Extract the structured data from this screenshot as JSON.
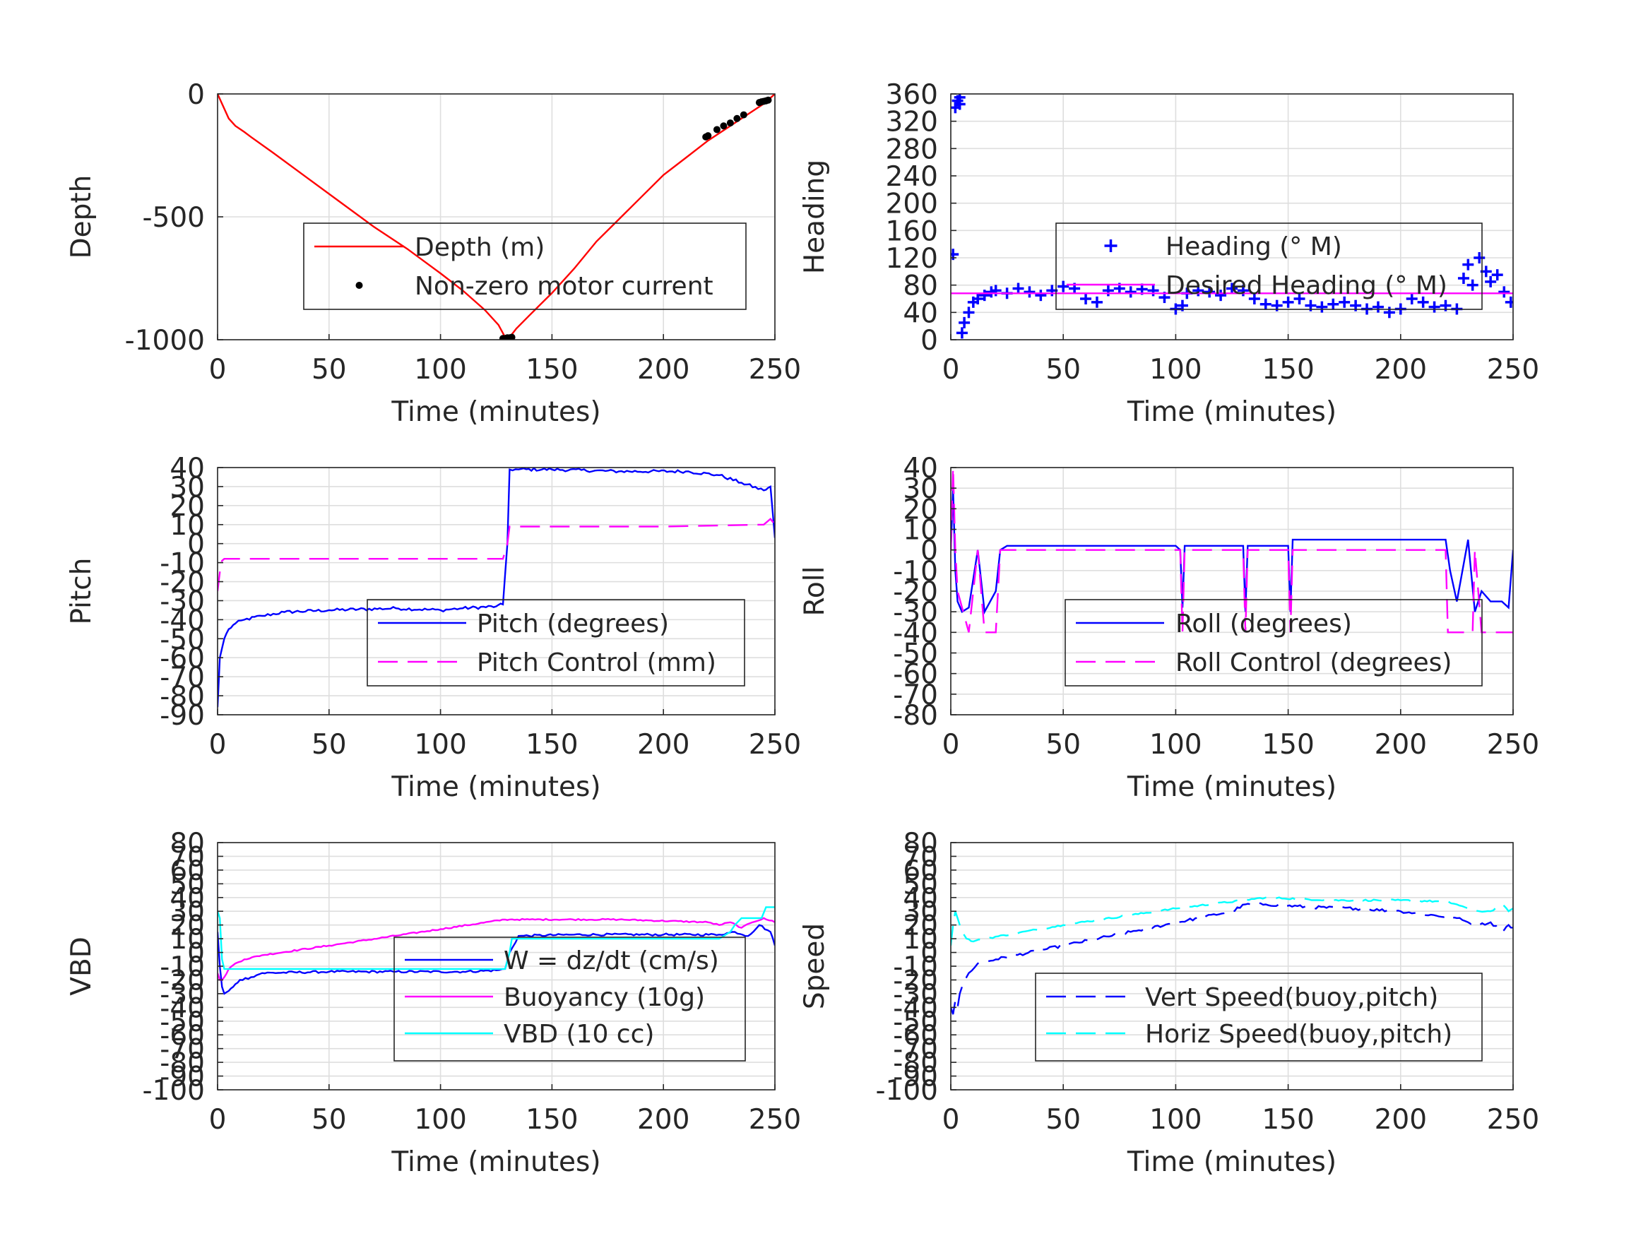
{
  "figure": {
    "background": "#ffffff"
  },
  "chart_data": [
    {
      "id": "depth",
      "type": "line",
      "title": "",
      "xlabel": "Time (minutes)",
      "ylabel": "Depth",
      "xlim": [
        0,
        250
      ],
      "ylim": [
        -1000,
        0
      ],
      "xticks": [
        0,
        50,
        100,
        150,
        200,
        250
      ],
      "yticks": [
        -1000,
        -500,
        0
      ],
      "yticklabels": [
        "-1000",
        "-500",
        "0"
      ],
      "grid": true,
      "legend": {
        "placement": "center-right"
      },
      "series": [
        {
          "name": "Depth (m)",
          "style": "line",
          "color": "#ff0000",
          "dash": "solid",
          "x": [
            0,
            2,
            5,
            8,
            12,
            15,
            25,
            40,
            55,
            70,
            85,
            100,
            110,
            120,
            126,
            129,
            131,
            134,
            140,
            150,
            160,
            170,
            180,
            190,
            200,
            210,
            220,
            230,
            240,
            245,
            250
          ],
          "y": [
            0,
            -40,
            -100,
            -130,
            -155,
            -175,
            -240,
            -340,
            -440,
            -540,
            -630,
            -730,
            -800,
            -880,
            -940,
            -990,
            -990,
            -955,
            -900,
            -810,
            -710,
            -600,
            -510,
            -420,
            -330,
            -260,
            -190,
            -130,
            -70,
            -40,
            0
          ]
        },
        {
          "name": "Non-zero motor current",
          "style": "marker",
          "marker": "dot",
          "color": "#000000",
          "x": [
            128,
            129,
            130,
            131,
            132,
            219,
            220,
            224,
            227,
            230,
            233,
            236,
            243,
            244,
            245,
            246,
            247
          ],
          "y": [
            -995,
            -995,
            -992,
            -992,
            -990,
            -175,
            -170,
            -145,
            -130,
            -118,
            -100,
            -85,
            -35,
            -32,
            -30,
            -28,
            -25
          ]
        }
      ]
    },
    {
      "id": "heading",
      "type": "scatter",
      "title": "",
      "xlabel": "Time (minutes)",
      "ylabel": "Heading",
      "xlim": [
        0,
        250
      ],
      "ylim": [
        0,
        360
      ],
      "xticks": [
        0,
        50,
        100,
        150,
        200,
        250
      ],
      "yticks": [
        0,
        40,
        80,
        120,
        160,
        200,
        240,
        280,
        320,
        360
      ],
      "yticklabels": [
        "0",
        "40",
        "80",
        "120",
        "160",
        "200",
        "240",
        "280",
        "320",
        "360"
      ],
      "grid": true,
      "legend": {
        "placement": "center"
      },
      "series": [
        {
          "name": "Heading (° M)",
          "style": "marker",
          "marker": "plus",
          "color": "#0000ff",
          "x": [
            1,
            2,
            3,
            4,
            4,
            5,
            6,
            8,
            10,
            12,
            15,
            18,
            20,
            25,
            30,
            35,
            40,
            45,
            50,
            55,
            60,
            65,
            70,
            75,
            80,
            85,
            90,
            95,
            100,
            103,
            105,
            110,
            115,
            120,
            125,
            130,
            135,
            140,
            145,
            150,
            155,
            160,
            165,
            170,
            175,
            180,
            185,
            190,
            195,
            200,
            205,
            210,
            215,
            220,
            225,
            228,
            230,
            232,
            235,
            238,
            240,
            243,
            246,
            249
          ],
          "y": [
            125,
            340,
            350,
            345,
            355,
            10,
            25,
            40,
            55,
            60,
            65,
            70,
            72,
            68,
            75,
            70,
            65,
            72,
            78,
            75,
            60,
            55,
            72,
            75,
            70,
            74,
            72,
            62,
            45,
            50,
            68,
            72,
            70,
            65,
            75,
            72,
            60,
            52,
            50,
            55,
            60,
            50,
            48,
            52,
            55,
            50,
            45,
            48,
            40,
            45,
            60,
            55,
            48,
            50,
            45,
            90,
            110,
            80,
            120,
            100,
            85,
            95,
            70,
            55
          ]
        },
        {
          "name": "Desired Heading (° M)",
          "style": "line",
          "color": "#ff00ff",
          "dash": "solid",
          "x": [
            0,
            250
          ],
          "y": [
            68,
            68
          ]
        }
      ]
    },
    {
      "id": "pitch",
      "type": "line",
      "title": "",
      "xlabel": "Time (minutes)",
      "ylabel": "Pitch",
      "xlim": [
        0,
        250
      ],
      "ylim": [
        -90,
        40
      ],
      "xticks": [
        0,
        50,
        100,
        150,
        200,
        250
      ],
      "yticks": [
        -90,
        -80,
        -70,
        -60,
        -50,
        -40,
        -30,
        -20,
        -10,
        0,
        10,
        20,
        30,
        40
      ],
      "yticklabels": [
        "-90",
        "-80",
        "-70",
        "-60",
        "-50",
        "-40",
        "-30",
        "-20",
        "-10",
        "0",
        "10",
        "20",
        "30",
        "40"
      ],
      "grid": true,
      "legend": {
        "placement": "center-right"
      },
      "series": [
        {
          "name": "Pitch (degrees)",
          "style": "line",
          "color": "#0000ff",
          "dash": "solid",
          "x": [
            0,
            1,
            2,
            3,
            5,
            8,
            12,
            20,
            30,
            50,
            80,
            100,
            110,
            125,
            128,
            130,
            131,
            135,
            150,
            180,
            210,
            225,
            235,
            245,
            248,
            250
          ],
          "y": [
            -86,
            -60,
            -55,
            -50,
            -45,
            -42,
            -40,
            -38,
            -36,
            -35,
            -34,
            -35,
            -34,
            -33,
            -32,
            0,
            39,
            39,
            39,
            38,
            38,
            36,
            32,
            28,
            30,
            3
          ],
          "noise": 0.8
        },
        {
          "name": "Pitch Control (mm)",
          "style": "line",
          "color": "#ff00ff",
          "dash": "dashed",
          "x": [
            0,
            1,
            2,
            3,
            10,
            60,
            120,
            128,
            130,
            131,
            140,
            200,
            245,
            248,
            250
          ],
          "y": [
            -25,
            -15,
            -9,
            -8,
            -8,
            -8,
            -8,
            -8,
            0,
            9,
            9,
            9,
            10,
            13,
            10
          ]
        }
      ]
    },
    {
      "id": "roll",
      "type": "line",
      "title": "",
      "xlabel": "Time (minutes)",
      "ylabel": "Roll",
      "xlim": [
        0,
        250
      ],
      "ylim": [
        -80,
        40
      ],
      "xticks": [
        0,
        50,
        100,
        150,
        200,
        250
      ],
      "yticks": [
        -80,
        -70,
        -60,
        -50,
        -40,
        -30,
        -20,
        -10,
        0,
        10,
        20,
        30,
        40
      ],
      "yticklabels": [
        "-80",
        "-70",
        "-60",
        "-50",
        "-40",
        "-30",
        "-20",
        "-10",
        "0",
        "10",
        "20",
        "30",
        "40"
      ],
      "grid": true,
      "legend": {
        "placement": "center-right"
      },
      "series": [
        {
          "name": "Roll (degrees)",
          "style": "line",
          "color": "#0000ff",
          "dash": "solid",
          "x": [
            0,
            1,
            2,
            3,
            5,
            8,
            12,
            15,
            20,
            22,
            25,
            30,
            50,
            100,
            102,
            103,
            104,
            130,
            131,
            132,
            150,
            151,
            152,
            180,
            200,
            215,
            220,
            222,
            225,
            230,
            233,
            236,
            240,
            245,
            248,
            250
          ],
          "y": [
            0,
            30,
            -10,
            -25,
            -30,
            -28,
            0,
            -30,
            -20,
            0,
            2,
            2,
            2,
            2,
            0,
            -28,
            2,
            2,
            -30,
            2,
            2,
            -30,
            5,
            5,
            5,
            5,
            5,
            -10,
            -25,
            5,
            -30,
            -20,
            -25,
            -25,
            -28,
            0
          ]
        },
        {
          "name": "Roll Control (degrees)",
          "style": "line",
          "color": "#ff00ff",
          "dash": "dashed",
          "x": [
            0,
            1,
            2,
            3,
            8,
            12,
            15,
            20,
            22,
            25,
            50,
            100,
            102,
            103,
            104,
            130,
            131,
            132,
            150,
            151,
            152,
            190,
            200,
            215,
            220,
            221,
            225,
            232,
            233,
            236,
            240,
            245,
            250
          ],
          "y": [
            0,
            40,
            0,
            -20,
            -40,
            0,
            -40,
            -40,
            0,
            0,
            0,
            0,
            0,
            -40,
            0,
            0,
            -40,
            0,
            0,
            -40,
            0,
            0,
            0,
            0,
            0,
            -40,
            -40,
            -40,
            0,
            -40,
            -40,
            -40,
            -40
          ]
        }
      ]
    },
    {
      "id": "vbd",
      "type": "line",
      "title": "",
      "xlabel": "Time (minutes)",
      "ylabel": "VBD",
      "xlim": [
        0,
        250
      ],
      "ylim": [
        -100,
        80
      ],
      "xticks": [
        0,
        50,
        100,
        150,
        200,
        250
      ],
      "yticks": [
        -100,
        -90,
        -80,
        -70,
        -60,
        -50,
        -40,
        -30,
        -20,
        -10,
        0,
        10,
        20,
        30,
        40,
        50,
        60,
        70,
        80
      ],
      "yticklabels": [
        "-100",
        "-90",
        "-80",
        "-70",
        "-60",
        "-50",
        "-40",
        "-30",
        "-20",
        "-10",
        "0",
        "10",
        "20",
        "30",
        "40",
        "50",
        "60",
        "70",
        "80"
      ],
      "grid": true,
      "legend": {
        "placement": "center-right"
      },
      "series": [
        {
          "name": "W = dz/dt (cm/s)",
          "style": "line",
          "color": "#0000ff",
          "dash": "solid",
          "x": [
            0,
            1,
            2,
            3,
            5,
            7,
            10,
            15,
            20,
            50,
            80,
            110,
            125,
            129,
            131,
            135,
            160,
            200,
            225,
            232,
            238,
            243,
            248,
            250
          ],
          "y": [
            15,
            -10,
            -25,
            -30,
            -28,
            -25,
            -20,
            -18,
            -15,
            -14,
            -14,
            -14,
            -13,
            -12,
            0,
            12,
            13,
            13,
            13,
            15,
            12,
            20,
            15,
            5
          ],
          "noise": 0.8
        },
        {
          "name": "Buoyancy (10g)",
          "style": "line",
          "color": "#ff00ff",
          "dash": "solid",
          "x": [
            0,
            1,
            2,
            3,
            5,
            8,
            12,
            20,
            50,
            100,
            129,
            131,
            140,
            180,
            220,
            225,
            230,
            235,
            240,
            245,
            250
          ],
          "y": [
            -15,
            -20,
            -20,
            -18,
            -12,
            -8,
            -5,
            -2,
            5,
            17,
            24,
            24,
            24,
            24,
            22,
            20,
            22,
            18,
            22,
            25,
            22
          ],
          "noise": 0.5
        },
        {
          "name": "VBD (10 cc)",
          "style": "line",
          "color": "#00ffff",
          "dash": "solid",
          "x": [
            0,
            1,
            2,
            3,
            10,
            50,
            100,
            129,
            131,
            132,
            200,
            225,
            230,
            232,
            235,
            240,
            244,
            246,
            250
          ],
          "y": [
            30,
            25,
            -5,
            -12,
            -12,
            -12,
            -12,
            -12,
            0,
            10,
            10,
            10,
            15,
            20,
            25,
            25,
            25,
            33,
            33
          ]
        }
      ]
    },
    {
      "id": "speed",
      "type": "line",
      "title": "",
      "xlabel": "Time (minutes)",
      "ylabel": "Speed",
      "xlim": [
        0,
        250
      ],
      "ylim": [
        -100,
        80
      ],
      "xticks": [
        0,
        50,
        100,
        150,
        200,
        250
      ],
      "yticks": [
        -100,
        -90,
        -80,
        -70,
        -60,
        -50,
        -40,
        -30,
        -20,
        -10,
        0,
        10,
        20,
        30,
        40,
        50,
        60,
        70,
        80
      ],
      "yticklabels": [
        "-100",
        "-90",
        "-80",
        "-70",
        "-60",
        "-50",
        "-40",
        "-30",
        "-20",
        "-10",
        "0",
        "10",
        "20",
        "30",
        "40",
        "50",
        "60",
        "70",
        "80"
      ],
      "grid": true,
      "legend": {
        "placement": "center-right"
      },
      "series": [
        {
          "name": "Vert Speed(buoy,pitch)",
          "style": "line",
          "color": "#0000ff",
          "dash": "dashed",
          "x": [
            0,
            1,
            2,
            3,
            4,
            5,
            8,
            12,
            20,
            50,
            80,
            110,
            125,
            131,
            140,
            160,
            180,
            200,
            210,
            225,
            230,
            235,
            240,
            245,
            248,
            250
          ],
          "y": [
            -40,
            -45,
            -35,
            -40,
            -30,
            -25,
            -15,
            -8,
            -5,
            5,
            15,
            25,
            30,
            35,
            35,
            33,
            32,
            30,
            28,
            25,
            22,
            20,
            22,
            15,
            20,
            18
          ],
          "noise": 1.0
        },
        {
          "name": "Horiz Speed(buoy,pitch)",
          "style": "line",
          "color": "#00ffff",
          "dash": "dashed",
          "x": [
            0,
            1,
            2,
            3,
            4,
            5,
            7,
            10,
            15,
            50,
            100,
            130,
            140,
            170,
            200,
            220,
            225,
            230,
            235,
            240,
            245,
            248,
            250
          ],
          "y": [
            5,
            20,
            30,
            25,
            20,
            15,
            10,
            8,
            10,
            20,
            32,
            38,
            40,
            38,
            38,
            37,
            35,
            32,
            30,
            30,
            35,
            30,
            32
          ],
          "noise": 0.6
        }
      ]
    }
  ]
}
